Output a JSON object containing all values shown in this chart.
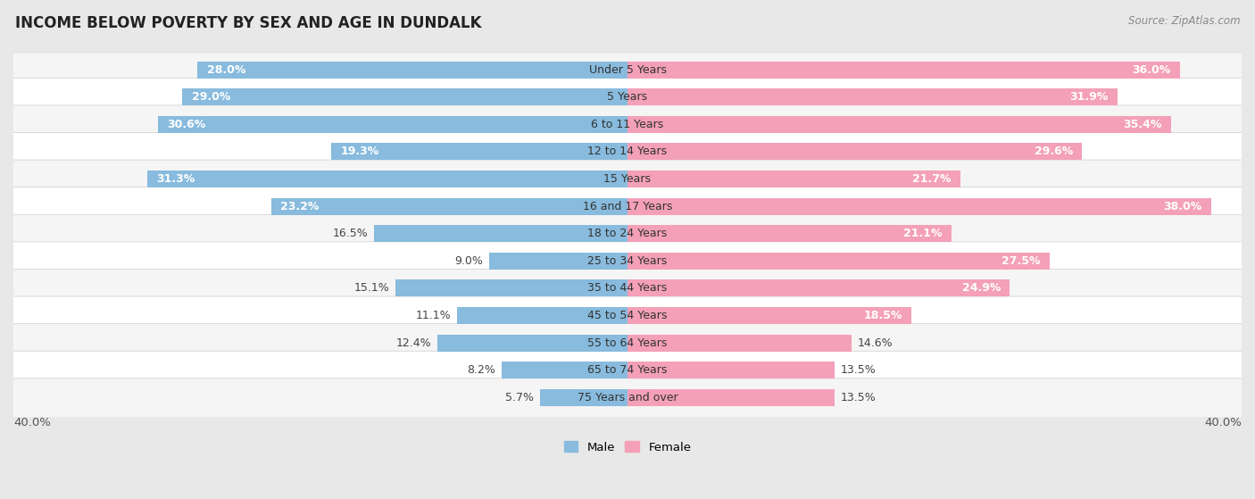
{
  "title": "INCOME BELOW POVERTY BY SEX AND AGE IN DUNDALK",
  "source": "Source: ZipAtlas.com",
  "categories": [
    "Under 5 Years",
    "5 Years",
    "6 to 11 Years",
    "12 to 14 Years",
    "15 Years",
    "16 and 17 Years",
    "18 to 24 Years",
    "25 to 34 Years",
    "35 to 44 Years",
    "45 to 54 Years",
    "55 to 64 Years",
    "65 to 74 Years",
    "75 Years and over"
  ],
  "male": [
    28.0,
    29.0,
    30.6,
    19.3,
    31.3,
    23.2,
    16.5,
    9.0,
    15.1,
    11.1,
    12.4,
    8.2,
    5.7
  ],
  "female": [
    36.0,
    31.9,
    35.4,
    29.6,
    21.7,
    38.0,
    21.1,
    27.5,
    24.9,
    18.5,
    14.6,
    13.5,
    13.5
  ],
  "male_color": "#88bbdd",
  "female_color": "#f4a0b8",
  "bar_height": 0.62,
  "xlim": 40.0,
  "background_color": "#e8e8e8",
  "row_colors": [
    "#f5f5f5",
    "#ffffff"
  ],
  "legend_male": "Male",
  "legend_female": "Female",
  "male_label_threshold": 18,
  "female_label_threshold": 18,
  "label_fontsize": 9,
  "cat_fontsize": 9
}
